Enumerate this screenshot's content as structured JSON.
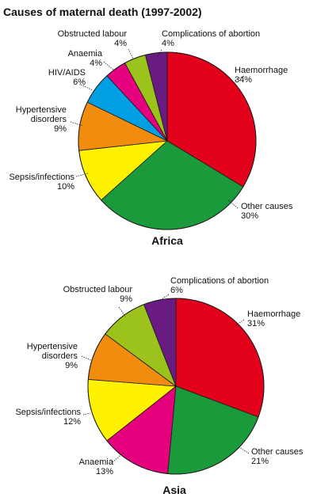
{
  "chart_data": {
    "title": "Causes of maternal death (1997-2002)",
    "pies": [
      {
        "type": "pie",
        "caption": "Africa",
        "slices": [
          {
            "label": "Haemorrhage",
            "value": 34,
            "value_label": "34%",
            "color": "#e3001b"
          },
          {
            "label": "Other causes",
            "value": 30,
            "value_label": "30%",
            "color": "#1a9a3a"
          },
          {
            "label": "Sepsis/infections",
            "value": 10,
            "value_label": "10%",
            "color": "#fff200"
          },
          {
            "label": "Hypertensive disorders",
            "label_lines": [
              "Hypertensive",
              "disorders"
            ],
            "value": 9,
            "value_label": "9%",
            "color": "#f28c0f"
          },
          {
            "label": "HIV/AIDS",
            "value": 6,
            "value_label": "6%",
            "color": "#009fe3"
          },
          {
            "label": "Anaemia",
            "value": 4,
            "value_label": "4%",
            "color": "#e5007e"
          },
          {
            "label": "Obstructed labour",
            "value": 4,
            "value_label": "4%",
            "color": "#9bc31c"
          },
          {
            "label": "Complications of abortion",
            "value": 4,
            "value_label": "4%",
            "color": "#6a1b82"
          }
        ]
      },
      {
        "type": "pie",
        "caption": "Asia",
        "slices": [
          {
            "label": "Haemorrhage",
            "value": 31,
            "value_label": "31%",
            "color": "#e3001b"
          },
          {
            "label": "Other causes",
            "value": 21,
            "value_label": "21%",
            "color": "#1a9a3a"
          },
          {
            "label": "Anaemia",
            "value": 13,
            "value_label": "13%",
            "color": "#e5007e"
          },
          {
            "label": "Sepsis/infections",
            "value": 12,
            "value_label": "12%",
            "color": "#fff200"
          },
          {
            "label": "Hypertensive disorders",
            "label_lines": [
              "Hypertensive",
              "disorders"
            ],
            "value": 9,
            "value_label": "9%",
            "color": "#f28c0f"
          },
          {
            "label": "Obstructed labour",
            "value": 9,
            "value_label": "9%",
            "color": "#9bc31c"
          },
          {
            "label": "Complications of abortion",
            "value": 6,
            "value_label": "6%",
            "color": "#6a1b82"
          }
        ]
      }
    ]
  }
}
